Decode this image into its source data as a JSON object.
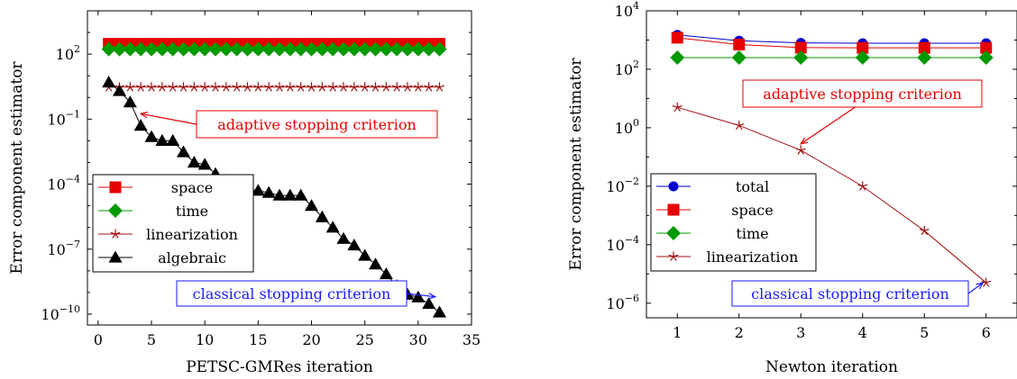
{
  "chart_data": [
    {
      "type": "line",
      "xlabel": "PETSC-GMRes iteration",
      "ylabel": "Error component estimator",
      "yscale": "log",
      "xlim": [
        -1,
        35
      ],
      "xticks": [
        0,
        5,
        10,
        15,
        20,
        25,
        30,
        35
      ],
      "ylim_log10": [
        -10.5,
        4
      ],
      "yticks_log10": [
        -10,
        -7,
        -4,
        -1,
        2
      ],
      "legend_position": "bottom-left",
      "series": [
        {
          "name": "space",
          "color": "#e60000",
          "marker": "square",
          "x": [
            1,
            2,
            3,
            4,
            5,
            6,
            7,
            8,
            9,
            10,
            11,
            12,
            13,
            14,
            15,
            16,
            17,
            18,
            19,
            20,
            21,
            22,
            23,
            24,
            25,
            26,
            27,
            28,
            29,
            30,
            31,
            32
          ],
          "y": [
            300,
            300,
            300,
            300,
            300,
            300,
            300,
            300,
            300,
            300,
            300,
            300,
            300,
            300,
            300,
            300,
            300,
            300,
            300,
            300,
            300,
            300,
            300,
            300,
            300,
            300,
            300,
            300,
            300,
            300,
            300,
            300
          ]
        },
        {
          "name": "time",
          "color": "#009900",
          "marker": "diamond",
          "x": [
            1,
            2,
            3,
            4,
            5,
            6,
            7,
            8,
            9,
            10,
            11,
            12,
            13,
            14,
            15,
            16,
            17,
            18,
            19,
            20,
            21,
            22,
            23,
            24,
            25,
            26,
            27,
            28,
            29,
            30,
            31,
            32
          ],
          "y": [
            170,
            170,
            170,
            170,
            170,
            170,
            170,
            170,
            170,
            170,
            170,
            170,
            170,
            170,
            170,
            170,
            170,
            170,
            170,
            170,
            170,
            170,
            170,
            170,
            170,
            170,
            170,
            170,
            170,
            170,
            170,
            170
          ]
        },
        {
          "name": "linearization",
          "color": "#a01010",
          "marker": "star",
          "x": [
            1,
            2,
            3,
            4,
            5,
            6,
            7,
            8,
            9,
            10,
            11,
            12,
            13,
            14,
            15,
            16,
            17,
            18,
            19,
            20,
            21,
            22,
            23,
            24,
            25,
            26,
            27,
            28,
            29,
            30,
            31,
            32
          ],
          "y": [
            3,
            3,
            3,
            3,
            3,
            3,
            3,
            3,
            3,
            3,
            3,
            3,
            3,
            3,
            3,
            3,
            3,
            3,
            3,
            3,
            3,
            3,
            3,
            3,
            3,
            3,
            3,
            3,
            3,
            3,
            3,
            3
          ]
        },
        {
          "name": "algebraic",
          "color": "#000000",
          "marker": "triangle",
          "x": [
            1,
            2,
            3,
            4,
            5,
            6,
            7,
            8,
            9,
            10,
            11,
            12,
            13,
            14,
            15,
            16,
            17,
            18,
            19,
            20,
            21,
            22,
            23,
            24,
            25,
            26,
            27,
            28,
            29,
            30,
            31,
            32
          ],
          "y": [
            5,
            2,
            0.6,
            0.05,
            0.015,
            0.01,
            0.01,
            0.003,
            0.001,
            0.0008,
            0.0003,
            0.00015,
            8e-05,
            6e-05,
            5e-05,
            4e-05,
            3e-05,
            3e-05,
            3e-05,
            1e-05,
            3e-06,
            1e-06,
            3e-07,
            1.5e-07,
            5e-08,
            2e-08,
            7e-09,
            2e-09,
            8e-10,
            6e-10,
            3e-10,
            1.2e-10
          ]
        }
      ],
      "annotations": [
        {
          "text": "adaptive stopping criterion",
          "color": "#e60000",
          "box_anchor_xy": [
            20,
            -1.2
          ],
          "arrow_to_xy": [
            4,
            -0.75
          ]
        },
        {
          "text": "classical stopping criterion",
          "color": "#1a1aff",
          "box_anchor_xy": [
            20,
            -9.2
          ],
          "arrow_to_xy": [
            31.6,
            -9.2
          ]
        }
      ]
    },
    {
      "type": "line",
      "xlabel": "Newton iteration",
      "ylabel": "Error component estimator",
      "yscale": "log",
      "xlim": [
        0.5,
        6.5
      ],
      "xticks": [
        1,
        2,
        3,
        4,
        5,
        6
      ],
      "ylim_log10": [
        -6.5,
        4
      ],
      "yticks_log10": [
        -6,
        -4,
        -2,
        0,
        2,
        4
      ],
      "legend_position": "bottom-left",
      "series": [
        {
          "name": "total",
          "color": "#0000cc",
          "marker": "circle",
          "x": [
            1,
            2,
            3,
            4,
            5,
            6
          ],
          "y": [
            1500,
            950,
            800,
            780,
            780,
            780
          ]
        },
        {
          "name": "space",
          "color": "#e60000",
          "marker": "square",
          "x": [
            1,
            2,
            3,
            4,
            5,
            6
          ],
          "y": [
            1200,
            700,
            550,
            540,
            540,
            540
          ]
        },
        {
          "name": "time",
          "color": "#009900",
          "marker": "diamond",
          "x": [
            1,
            2,
            3,
            4,
            5,
            6
          ],
          "y": [
            250,
            250,
            250,
            250,
            250,
            250
          ]
        },
        {
          "name": "linearization",
          "color": "#a01010",
          "marker": "star",
          "x": [
            1,
            2,
            3,
            4,
            5,
            6
          ],
          "y": [
            5,
            1.2,
            0.17,
            0.01,
            0.0003,
            5e-06
          ]
        }
      ],
      "annotations": [
        {
          "text": "adaptive stopping criterion",
          "color": "#e60000",
          "box_anchor_xy": [
            4.6,
            1.3
          ],
          "arrow_to_xy": [
            3.0,
            -0.55
          ]
        },
        {
          "text": "classical stopping criterion",
          "color": "#1a1aff",
          "box_anchor_xy": [
            4.0,
            -5.3
          ],
          "arrow_to_xy": [
            5.95,
            -5.3
          ]
        }
      ]
    }
  ]
}
